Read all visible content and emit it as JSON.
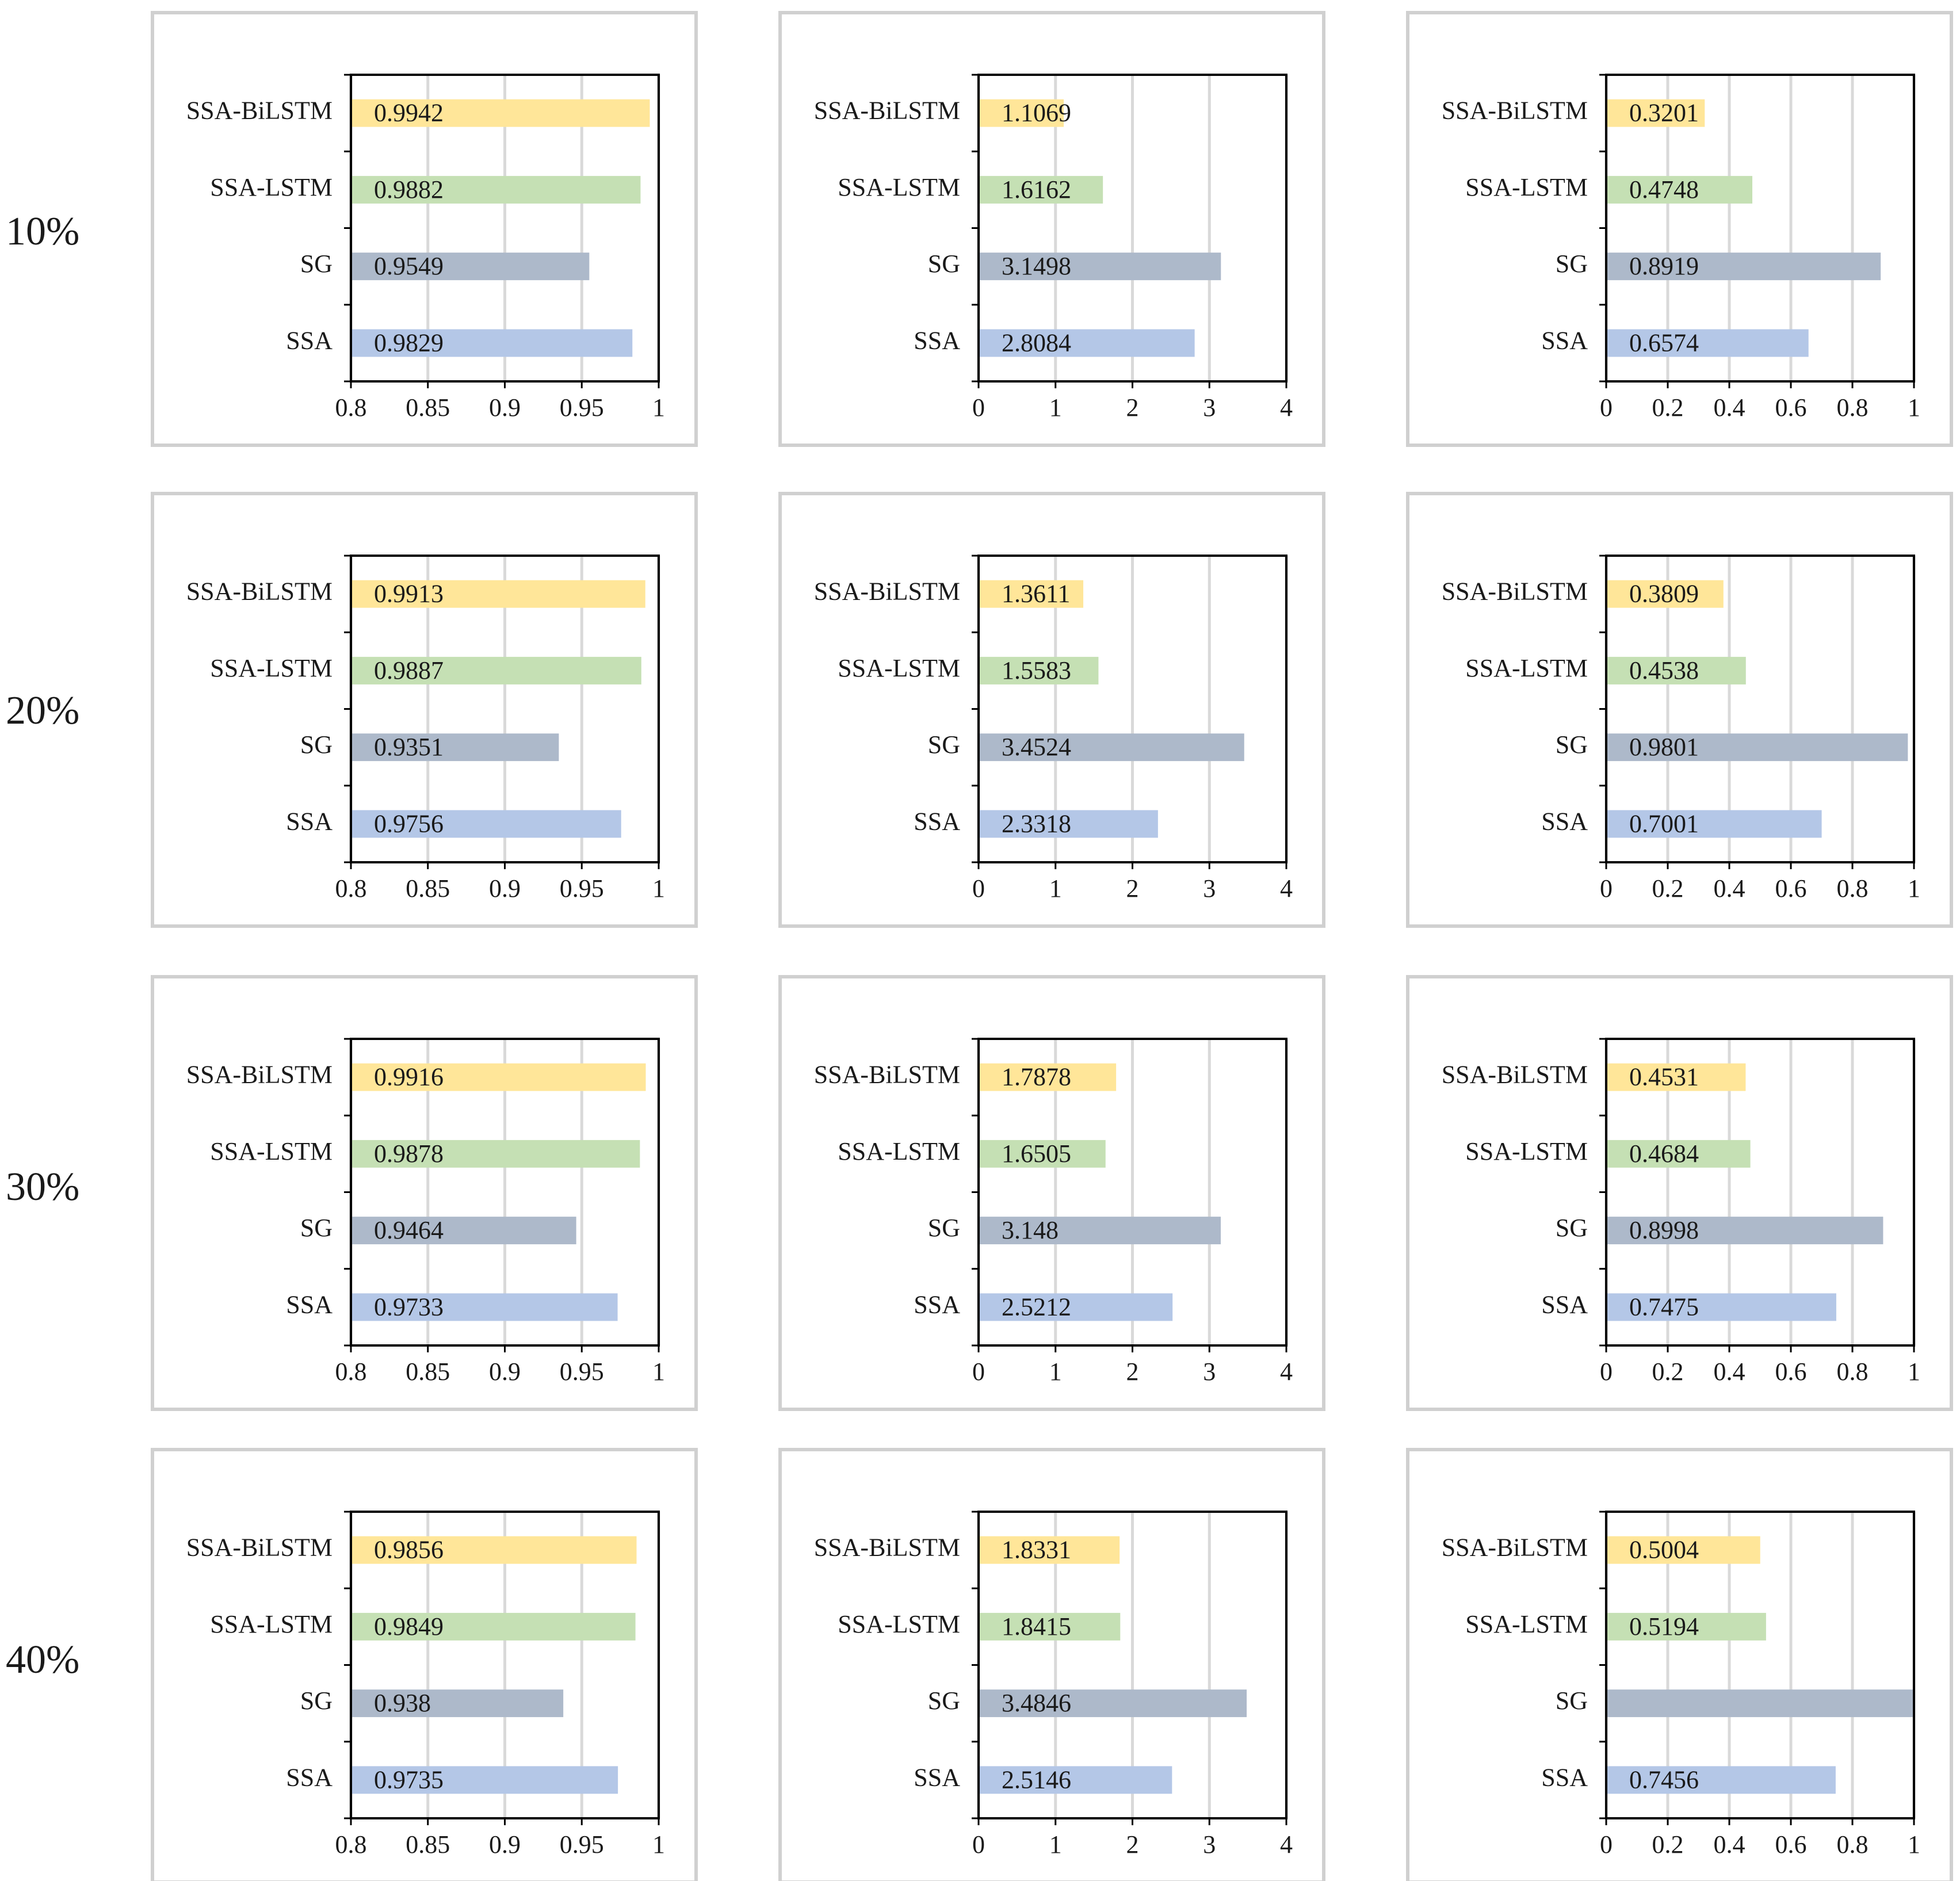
{
  "row_labels": [
    "10%",
    "20%",
    "30%",
    "40%"
  ],
  "chart_data": [
    {
      "type": "bar",
      "orientation": "horizontal",
      "categories": [
        "SSA",
        "SG",
        "SSA-LSTM",
        "SSA-BiLSTM"
      ],
      "values": [
        0.9829,
        0.9549,
        0.9882,
        0.9942
      ],
      "colors": [
        "#b4c7e7",
        "#adb9ca",
        "#c5e0b4",
        "#ffe699"
      ],
      "xlim": [
        0.8,
        1
      ],
      "xticks": [
        0.8,
        0.85,
        0.9,
        0.95,
        1
      ],
      "grid": true
    },
    {
      "type": "bar",
      "orientation": "horizontal",
      "categories": [
        "SSA",
        "SG",
        "SSA-LSTM",
        "SSA-BiLSTM"
      ],
      "values": [
        2.8084,
        3.1498,
        1.6162,
        1.1069
      ],
      "colors": [
        "#b4c7e7",
        "#adb9ca",
        "#c5e0b4",
        "#ffe699"
      ],
      "xlim": [
        0,
        4
      ],
      "xticks": [
        0,
        1,
        2,
        3,
        4
      ],
      "grid": true
    },
    {
      "type": "bar",
      "orientation": "horizontal",
      "categories": [
        "SSA",
        "SG",
        "SSA-LSTM",
        "SSA-BiLSTM"
      ],
      "values": [
        0.6574,
        0.8919,
        0.4748,
        0.3201
      ],
      "colors": [
        "#b4c7e7",
        "#adb9ca",
        "#c5e0b4",
        "#ffe699"
      ],
      "xlim": [
        0,
        1
      ],
      "xticks": [
        0,
        0.2,
        0.4,
        0.6,
        0.8,
        1
      ],
      "grid": true
    },
    {
      "type": "bar",
      "orientation": "horizontal",
      "categories": [
        "SSA",
        "SG",
        "SSA-LSTM",
        "SSA-BiLSTM"
      ],
      "values": [
        0.9756,
        0.9351,
        0.9887,
        0.9913
      ],
      "colors": [
        "#b4c7e7",
        "#adb9ca",
        "#c5e0b4",
        "#ffe699"
      ],
      "xlim": [
        0.8,
        1
      ],
      "xticks": [
        0.8,
        0.85,
        0.9,
        0.95,
        1
      ],
      "grid": true
    },
    {
      "type": "bar",
      "orientation": "horizontal",
      "categories": [
        "SSA",
        "SG",
        "SSA-LSTM",
        "SSA-BiLSTM"
      ],
      "values": [
        2.3318,
        3.4524,
        1.5583,
        1.3611
      ],
      "colors": [
        "#b4c7e7",
        "#adb9ca",
        "#c5e0b4",
        "#ffe699"
      ],
      "xlim": [
        0,
        4
      ],
      "xticks": [
        0,
        1,
        2,
        3,
        4
      ],
      "grid": true
    },
    {
      "type": "bar",
      "orientation": "horizontal",
      "categories": [
        "SSA",
        "SG",
        "SSA-LSTM",
        "SSA-BiLSTM"
      ],
      "values": [
        0.7001,
        0.9801,
        0.4538,
        0.3809
      ],
      "colors": [
        "#b4c7e7",
        "#adb9ca",
        "#c5e0b4",
        "#ffe699"
      ],
      "xlim": [
        0,
        1
      ],
      "xticks": [
        0,
        0.2,
        0.4,
        0.6,
        0.8,
        1
      ],
      "grid": true
    },
    {
      "type": "bar",
      "orientation": "horizontal",
      "categories": [
        "SSA",
        "SG",
        "SSA-LSTM",
        "SSA-BiLSTM"
      ],
      "values": [
        0.9733,
        0.9464,
        0.9878,
        0.9916
      ],
      "colors": [
        "#b4c7e7",
        "#adb9ca",
        "#c5e0b4",
        "#ffe699"
      ],
      "xlim": [
        0.8,
        1
      ],
      "xticks": [
        0.8,
        0.85,
        0.9,
        0.95,
        1
      ],
      "grid": true
    },
    {
      "type": "bar",
      "orientation": "horizontal",
      "categories": [
        "SSA",
        "SG",
        "SSA-LSTM",
        "SSA-BiLSTM"
      ],
      "values": [
        2.5212,
        3.148,
        1.6505,
        1.7878
      ],
      "colors": [
        "#b4c7e7",
        "#adb9ca",
        "#c5e0b4",
        "#ffe699"
      ],
      "xlim": [
        0,
        4
      ],
      "xticks": [
        0,
        1,
        2,
        3,
        4
      ],
      "grid": true
    },
    {
      "type": "bar",
      "orientation": "horizontal",
      "categories": [
        "SSA",
        "SG",
        "SSA-LSTM",
        "SSA-BiLSTM"
      ],
      "values": [
        0.7475,
        0.8998,
        0.4684,
        0.4531
      ],
      "colors": [
        "#b4c7e7",
        "#adb9ca",
        "#c5e0b4",
        "#ffe699"
      ],
      "xlim": [
        0,
        1
      ],
      "xticks": [
        0,
        0.2,
        0.4,
        0.6,
        0.8,
        1
      ],
      "grid": true
    },
    {
      "type": "bar",
      "orientation": "horizontal",
      "categories": [
        "SSA",
        "SG",
        "SSA-LSTM",
        "SSA-BiLSTM"
      ],
      "values": [
        0.9735,
        0.938,
        0.9849,
        0.9856
      ],
      "colors": [
        "#b4c7e7",
        "#adb9ca",
        "#c5e0b4",
        "#ffe699"
      ],
      "xlim": [
        0.8,
        1
      ],
      "xticks": [
        0.8,
        0.85,
        0.9,
        0.95,
        1
      ],
      "grid": true
    },
    {
      "type": "bar",
      "orientation": "horizontal",
      "categories": [
        "SSA",
        "SG",
        "SSA-LSTM",
        "SSA-BiLSTM"
      ],
      "values": [
        2.5146,
        3.4846,
        1.8415,
        1.8331
      ],
      "colors": [
        "#b4c7e7",
        "#adb9ca",
        "#c5e0b4",
        "#ffe699"
      ],
      "xlim": [
        0,
        4
      ],
      "xticks": [
        0,
        1,
        2,
        3,
        4
      ],
      "grid": true
    },
    {
      "type": "bar",
      "orientation": "horizontal",
      "categories": [
        "SSA",
        "SG",
        "SSA-LSTM",
        "SSA-BiLSTM"
      ],
      "values": [
        0.7456,
        1,
        0.5194,
        0.5004
      ],
      "value_labels": [
        "0.7456",
        null,
        "0.5194",
        "0.5004"
      ],
      "colors": [
        "#b4c7e7",
        "#adb9ca",
        "#c5e0b4",
        "#ffe699"
      ],
      "xlim": [
        0,
        1
      ],
      "xticks": [
        0,
        0.2,
        0.4,
        0.6,
        0.8,
        1
      ],
      "grid": true
    }
  ]
}
